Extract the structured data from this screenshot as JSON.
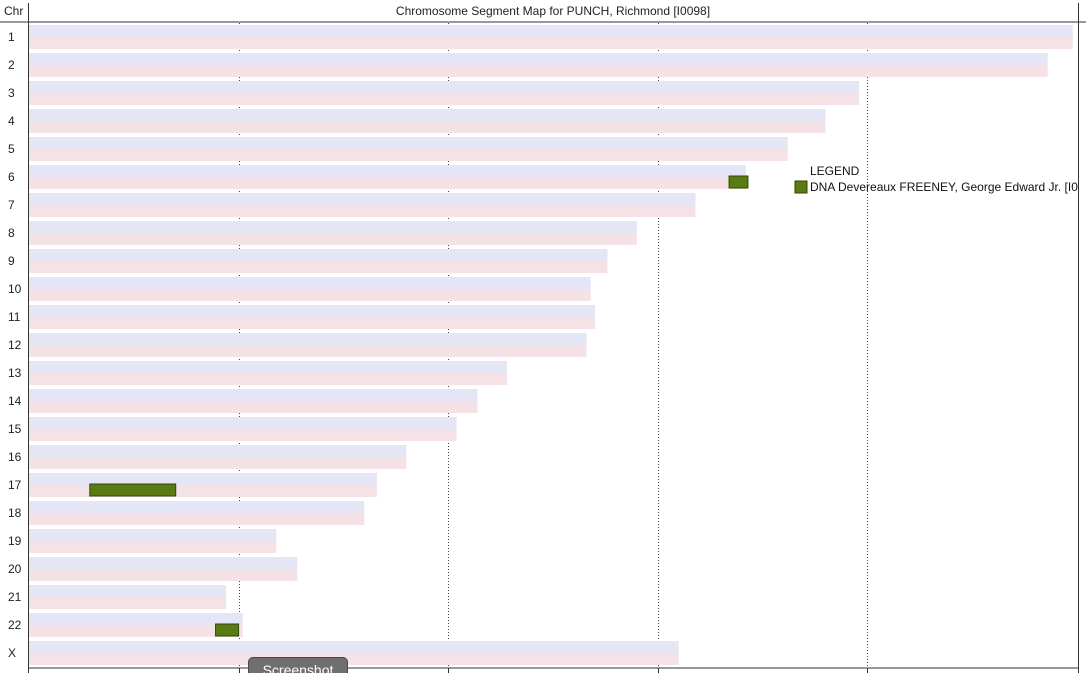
{
  "chart_data": {
    "type": "bar",
    "title": "Chromosome Segment Map for PUNCH, Richmond [I0098]",
    "row_header": "Chr",
    "chromosomes": [
      "1",
      "2",
      "3",
      "4",
      "5",
      "6",
      "7",
      "8",
      "9",
      "10",
      "11",
      "12",
      "13",
      "14",
      "15",
      "16",
      "17",
      "18",
      "19",
      "20",
      "21",
      "22",
      "X"
    ],
    "lengths_mb": [
      249,
      243,
      198,
      190,
      181,
      171,
      159,
      145,
      138,
      134,
      135,
      133,
      114,
      107,
      102,
      90,
      83,
      80,
      59,
      64,
      47,
      51,
      155
    ],
    "xlim": [
      0,
      250
    ],
    "gridlines_mb": [
      50,
      100,
      150,
      200
    ],
    "bar_colors": {
      "upper": "#e4e6f6",
      "lower": "#f4e2e6"
    },
    "segments": [
      {
        "chromosome": "6",
        "start_mb": 167,
        "end_mb": 171.5
      },
      {
        "chromosome": "17",
        "start_mb": 14.5,
        "end_mb": 35
      },
      {
        "chromosome": "22",
        "start_mb": 44.5,
        "end_mb": 50
      }
    ],
    "segment_color": "#5a7a12",
    "legend": {
      "title": "LEGEND",
      "entries": [
        {
          "label": "DNA Devereaux FREENEY, George Edward Jr. [I0",
          "color": "#5a7a12"
        }
      ],
      "placement": "right"
    }
  },
  "overlay": {
    "screenshot_button": "Screenshot"
  }
}
